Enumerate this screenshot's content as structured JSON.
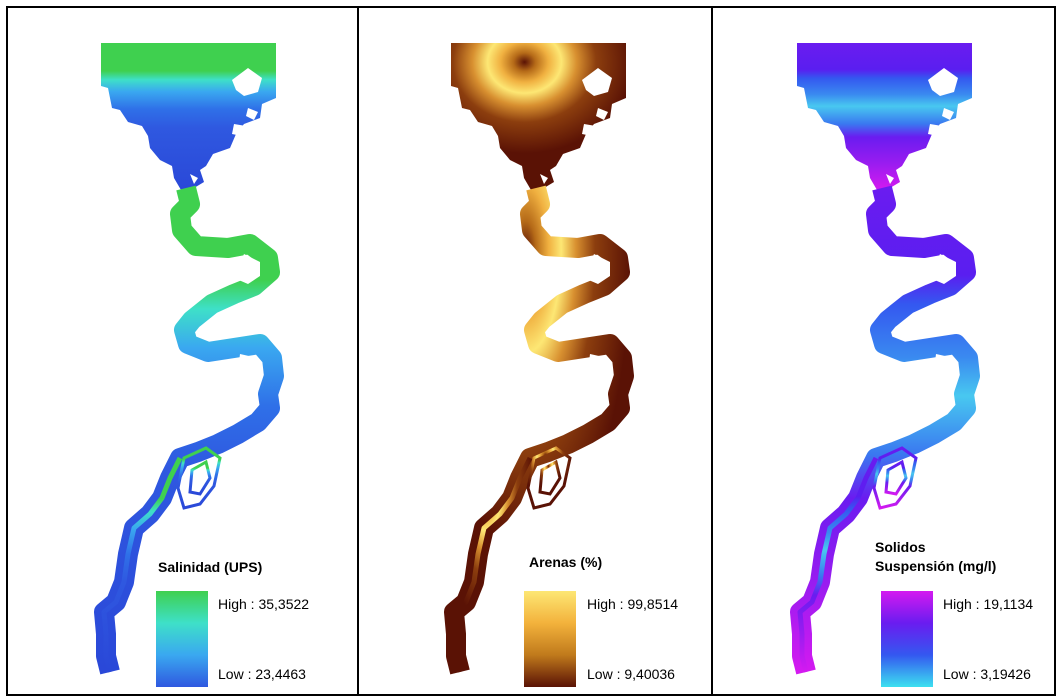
{
  "panels": [
    {
      "id": "salinidad",
      "title_lines": [
        "Salinidad (UPS)"
      ],
      "high_label": "High : 35,3522",
      "low_label": "Low : 23,4463",
      "ramp_colors": [
        "#3fd04f",
        "#3ee0c8",
        "#3aa8f0",
        "#2f58e0"
      ]
    },
    {
      "id": "arenas",
      "title_lines": [
        "Arenas (%)"
      ],
      "high_label": "High : 99,8514",
      "low_label": "Low : 9,40036",
      "ramp_colors": [
        "#fde774",
        "#f3b23c",
        "#c07a1c",
        "#5a1205"
      ]
    },
    {
      "id": "solidos",
      "title_lines": [
        "Solidos",
        "Suspensión (mg/l)"
      ],
      "high_label": "High : 19,1134",
      "low_label": "Low : 3,19426",
      "ramp_colors": [
        "#d41af0",
        "#6a1cf0",
        "#3458f0",
        "#3ce0f0"
      ]
    }
  ]
}
